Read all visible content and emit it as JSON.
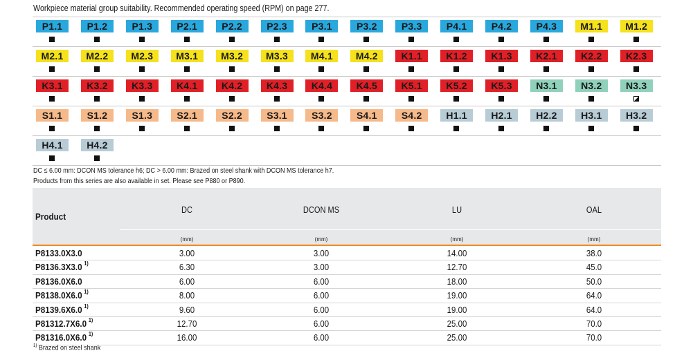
{
  "title": "Workpiece material group suitability. Recommended operating speed (RPM) on page 277.",
  "colors": {
    "P": "#29a8de",
    "M": "#f5e21c",
    "K": "#e11f26",
    "N": "#8fd1bb",
    "S": "#f6b98a",
    "H": "#b8ccd6",
    "header_bg": "#e7e8e9",
    "accent_line": "#f08a24"
  },
  "material_groups": [
    [
      {
        "code": "P1.1",
        "group": "P",
        "mark": "full"
      },
      {
        "code": "P1.2",
        "group": "P",
        "mark": "full"
      },
      {
        "code": "P1.3",
        "group": "P",
        "mark": "full"
      },
      {
        "code": "P2.1",
        "group": "P",
        "mark": "full"
      },
      {
        "code": "P2.2",
        "group": "P",
        "mark": "full"
      },
      {
        "code": "P2.3",
        "group": "P",
        "mark": "full"
      },
      {
        "code": "P3.1",
        "group": "P",
        "mark": "full"
      },
      {
        "code": "P3.2",
        "group": "P",
        "mark": "full"
      },
      {
        "code": "P3.3",
        "group": "P",
        "mark": "full"
      },
      {
        "code": "P4.1",
        "group": "P",
        "mark": "full"
      },
      {
        "code": "P4.2",
        "group": "P",
        "mark": "full"
      },
      {
        "code": "P4.3",
        "group": "P",
        "mark": "full"
      },
      {
        "code": "M1.1",
        "group": "M",
        "mark": "full"
      },
      {
        "code": "M1.2",
        "group": "M",
        "mark": "full"
      }
    ],
    [
      {
        "code": "M2.1",
        "group": "M",
        "mark": "full"
      },
      {
        "code": "M2.2",
        "group": "M",
        "mark": "full"
      },
      {
        "code": "M2.3",
        "group": "M",
        "mark": "full"
      },
      {
        "code": "M3.1",
        "group": "M",
        "mark": "full"
      },
      {
        "code": "M3.2",
        "group": "M",
        "mark": "full"
      },
      {
        "code": "M3.3",
        "group": "M",
        "mark": "full"
      },
      {
        "code": "M4.1",
        "group": "M",
        "mark": "full"
      },
      {
        "code": "M4.2",
        "group": "M",
        "mark": "full"
      },
      {
        "code": "K1.1",
        "group": "K",
        "mark": "full"
      },
      {
        "code": "K1.2",
        "group": "K",
        "mark": "full"
      },
      {
        "code": "K1.3",
        "group": "K",
        "mark": "full"
      },
      {
        "code": "K2.1",
        "group": "K",
        "mark": "full"
      },
      {
        "code": "K2.2",
        "group": "K",
        "mark": "full"
      },
      {
        "code": "K2.3",
        "group": "K",
        "mark": "full"
      }
    ],
    [
      {
        "code": "K3.1",
        "group": "K",
        "mark": "full"
      },
      {
        "code": "K3.2",
        "group": "K",
        "mark": "full"
      },
      {
        "code": "K3.3",
        "group": "K",
        "mark": "full"
      },
      {
        "code": "K4.1",
        "group": "K",
        "mark": "full"
      },
      {
        "code": "K4.2",
        "group": "K",
        "mark": "full"
      },
      {
        "code": "K4.3",
        "group": "K",
        "mark": "full"
      },
      {
        "code": "K4.4",
        "group": "K",
        "mark": "full"
      },
      {
        "code": "K4.5",
        "group": "K",
        "mark": "full"
      },
      {
        "code": "K5.1",
        "group": "K",
        "mark": "full"
      },
      {
        "code": "K5.2",
        "group": "K",
        "mark": "full"
      },
      {
        "code": "K5.3",
        "group": "K",
        "mark": "full"
      },
      {
        "code": "N3.1",
        "group": "N",
        "mark": "full"
      },
      {
        "code": "N3.2",
        "group": "N",
        "mark": "full"
      },
      {
        "code": "N3.3",
        "group": "N",
        "mark": "half"
      }
    ],
    [
      {
        "code": "S1.1",
        "group": "S",
        "mark": "full"
      },
      {
        "code": "S1.2",
        "group": "S",
        "mark": "full"
      },
      {
        "code": "S1.3",
        "group": "S",
        "mark": "full"
      },
      {
        "code": "S2.1",
        "group": "S",
        "mark": "full"
      },
      {
        "code": "S2.2",
        "group": "S",
        "mark": "full"
      },
      {
        "code": "S3.1",
        "group": "S",
        "mark": "full"
      },
      {
        "code": "S3.2",
        "group": "S",
        "mark": "full"
      },
      {
        "code": "S4.1",
        "group": "S",
        "mark": "full"
      },
      {
        "code": "S4.2",
        "group": "S",
        "mark": "full"
      },
      {
        "code": "H1.1",
        "group": "H",
        "mark": "full"
      },
      {
        "code": "H2.1",
        "group": "H",
        "mark": "full"
      },
      {
        "code": "H2.2",
        "group": "H",
        "mark": "full"
      },
      {
        "code": "H3.1",
        "group": "H",
        "mark": "full"
      },
      {
        "code": "H3.2",
        "group": "H",
        "mark": "full"
      }
    ],
    [
      {
        "code": "H4.1",
        "group": "H",
        "mark": "full"
      },
      {
        "code": "H4.2",
        "group": "H",
        "mark": "full"
      }
    ]
  ],
  "notes": [
    "DC ≤ 6.00 mm: DCON MS tolerance h6; DC > 6.00 mm: Brazed on steel shank with DCON MS tolerance h7.",
    "Products from this series are also available in set. Please see P880 or P890."
  ],
  "table": {
    "product_header": "Product",
    "columns": [
      {
        "label": "DC",
        "unit": "(mm)"
      },
      {
        "label": "DCON MS",
        "unit": "(mm)"
      },
      {
        "label": "LU",
        "unit": "(mm)"
      },
      {
        "label": "OAL",
        "unit": "(mm)"
      }
    ],
    "rows": [
      {
        "product": "P8133.0X3.0",
        "footnote": "",
        "dc": "3.00",
        "dcon": "3.00",
        "lu": "14.00",
        "oal": "38.0"
      },
      {
        "product": "P8136.3X3.0",
        "footnote": "1)",
        "dc": "6.30",
        "dcon": "3.00",
        "lu": "12.70",
        "oal": "45.0"
      },
      {
        "product": "P8136.0X6.0",
        "footnote": "",
        "dc": "6.00",
        "dcon": "6.00",
        "lu": "18.00",
        "oal": "50.0"
      },
      {
        "product": "P8138.0X6.0",
        "footnote": "1)",
        "dc": "8.00",
        "dcon": "6.00",
        "lu": "19.00",
        "oal": "64.0"
      },
      {
        "product": "P8139.6X6.0",
        "footnote": "1)",
        "dc": "9.60",
        "dcon": "6.00",
        "lu": "19.00",
        "oal": "64.0"
      },
      {
        "product": "P81312.7X6.0",
        "footnote": "1)",
        "dc": "12.70",
        "dcon": "6.00",
        "lu": "25.00",
        "oal": "70.0"
      },
      {
        "product": "P81316.0X6.0",
        "footnote": "1)",
        "dc": "16.00",
        "dcon": "6.00",
        "lu": "25.00",
        "oal": "70.0"
      }
    ]
  },
  "footnote": {
    "marker": "1)",
    "text": "Brazed on steel shank"
  }
}
